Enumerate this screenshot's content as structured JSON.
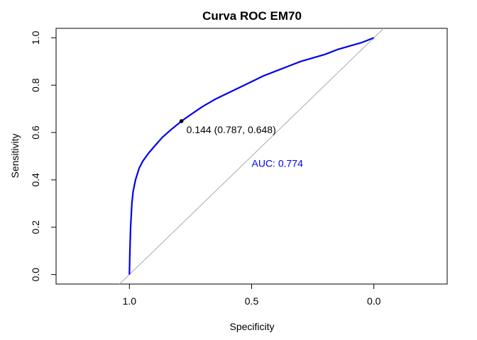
{
  "chart_data": {
    "type": "line",
    "title": "Curva ROC EM70",
    "xlabel": "Specificity",
    "ylabel": "Sensitivity",
    "x_reversed": true,
    "xlim": [
      1.3,
      -0.3
    ],
    "ylim": [
      -0.04,
      1.04
    ],
    "x_ticks": [
      1.0,
      0.5,
      0.0
    ],
    "x_tick_labels": [
      "1.0",
      "0.5",
      "0.0"
    ],
    "y_ticks": [
      0.0,
      0.2,
      0.4,
      0.6,
      0.8,
      1.0
    ],
    "y_tick_labels": [
      "0.0",
      "0.2",
      "0.4",
      "0.6",
      "0.8",
      "1.0"
    ],
    "grid": false,
    "legend": "none",
    "series": [
      {
        "color": "#0000ee",
        "specificity": [
          1.0,
          0.998,
          0.995,
          0.99,
          0.985,
          0.975,
          0.96,
          0.945,
          0.92,
          0.895,
          0.865,
          0.832,
          0.787,
          0.75,
          0.7,
          0.65,
          0.6,
          0.55,
          0.5,
          0.45,
          0.4,
          0.35,
          0.3,
          0.25,
          0.2,
          0.15,
          0.1,
          0.05,
          0.0
        ],
        "sensitivity": [
          0.0,
          0.1,
          0.2,
          0.3,
          0.35,
          0.4,
          0.45,
          0.48,
          0.515,
          0.545,
          0.58,
          0.61,
          0.648,
          0.675,
          0.71,
          0.74,
          0.765,
          0.79,
          0.815,
          0.84,
          0.86,
          0.88,
          0.9,
          0.915,
          0.93,
          0.95,
          0.965,
          0.98,
          1.0
        ]
      }
    ],
    "reference_line": {
      "color": "#aaaaaa",
      "from": [
        1.0,
        0.0
      ],
      "to": [
        0.0,
        1.0
      ]
    },
    "threshold_point": {
      "specificity": 0.787,
      "sensitivity": 0.648,
      "label": "0.144 (0.787, 0.648)",
      "color": "#000000"
    },
    "auc_label": {
      "text": "AUC: 0.774",
      "specificity": 0.5,
      "sensitivity": 0.47,
      "color": "#0000ee"
    }
  }
}
